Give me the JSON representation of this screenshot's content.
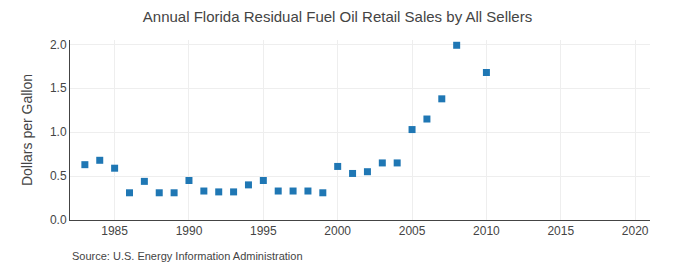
{
  "chart_data": {
    "type": "scatter",
    "title": "Annual Florida Residual Fuel Oil Retail Sales by All Sellers",
    "ylabel": "Dollars per Gallon",
    "annotations": [
      "Source: U.S. Energy Information Administration"
    ],
    "x": [
      1983,
      1984,
      1985,
      1986,
      1987,
      1988,
      1989,
      1990,
      1991,
      1992,
      1993,
      1994,
      1995,
      1996,
      1997,
      1998,
      1999,
      2000,
      2001,
      2002,
      2003,
      2004,
      2005,
      2006,
      2007,
      2008,
      2010
    ],
    "values": [
      0.63,
      0.68,
      0.59,
      0.31,
      0.44,
      0.31,
      0.31,
      0.45,
      0.33,
      0.32,
      0.32,
      0.4,
      0.45,
      0.33,
      0.33,
      0.33,
      0.31,
      0.61,
      0.53,
      0.55,
      0.65,
      0.65,
      1.03,
      1.15,
      1.38,
      1.99,
      1.68
    ],
    "marker": "square",
    "xlim": [
      1982,
      2021
    ],
    "ylim": [
      0.0,
      2.05
    ],
    "xticks": [
      1985,
      1990,
      1995,
      2000,
      2005,
      2010,
      2015,
      2020
    ],
    "yticks": [
      {
        "value": 0.0,
        "label": "0.0"
      },
      0.5,
      {
        "value": 1.0,
        "label": "1.0"
      },
      1.5,
      {
        "value": 2.0,
        "label": "2.0"
      }
    ],
    "grid": true
  }
}
